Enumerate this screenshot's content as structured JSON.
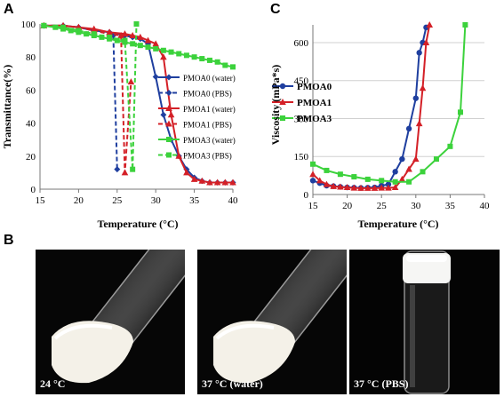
{
  "panel_labels": {
    "a": "A",
    "b": "B",
    "c": "C"
  },
  "chart_data": [
    {
      "type": "line",
      "ylabel": "Transmittance(%)",
      "xlabel": "Temperature (°C)",
      "xlim": [
        15,
        40
      ],
      "ylim": [
        0,
        100
      ],
      "x_ticks": [
        "15",
        "20",
        "25",
        "30",
        "35",
        "40"
      ],
      "y_ticks": [
        "0",
        "20",
        "40",
        "60",
        "80",
        "100"
      ],
      "legend_position": "right",
      "series": [
        {
          "name": "PMOA0 (water)",
          "color": "#1f3f9f",
          "dashed": false,
          "marker": "diamond",
          "x": [
            15.5,
            18,
            20,
            22,
            24,
            26,
            27,
            28,
            29,
            30,
            31,
            32,
            33,
            34,
            35,
            36,
            37,
            38,
            39,
            40
          ],
          "y": [
            99,
            99,
            98,
            96,
            95,
            93,
            92,
            91,
            88,
            68,
            45,
            30,
            20,
            12,
            7,
            5,
            4,
            4,
            4,
            4
          ]
        },
        {
          "name": "PMOA0 (PBS)",
          "color": "#1f3f9f",
          "dashed": true,
          "marker": "diamond",
          "x": [
            15.5,
            18,
            20,
            22,
            24,
            24.5,
            25
          ],
          "y": [
            99,
            99,
            98,
            96,
            94,
            93,
            12
          ]
        },
        {
          "name": "PMOA1 (water)",
          "color": "#d42027",
          "dashed": false,
          "marker": "triangle",
          "x": [
            15.5,
            18,
            20,
            22,
            24,
            26,
            27,
            28,
            29,
            30,
            31,
            32,
            33,
            34,
            35,
            36,
            37,
            38,
            39,
            40
          ],
          "y": [
            99,
            99,
            98,
            97,
            95,
            94,
            93,
            92,
            90,
            88,
            80,
            45,
            20,
            10,
            6,
            5,
            4,
            4,
            4,
            4
          ]
        },
        {
          "name": "PMOA1 (PBS)",
          "color": "#d42027",
          "dashed": true,
          "marker": "triangle",
          "x": [
            15.5,
            18,
            20,
            22,
            24,
            25.5,
            26,
            26.8
          ],
          "y": [
            99,
            99,
            98,
            96,
            94,
            93,
            10,
            65
          ]
        },
        {
          "name": "PMOA3 (water)",
          "color": "#3cd23c",
          "dashed": false,
          "marker": "square",
          "x": [
            15.5,
            17,
            18,
            19,
            20,
            21,
            22,
            23,
            24,
            25,
            26,
            27,
            28,
            29,
            30,
            31,
            32,
            33,
            34,
            35,
            36,
            37,
            38,
            39,
            40
          ],
          "y": [
            99,
            98,
            97,
            96,
            95,
            94,
            93,
            92,
            91,
            90,
            89,
            88,
            87,
            86,
            85,
            84,
            83,
            82,
            81,
            80,
            79,
            78,
            77,
            75,
            74
          ]
        },
        {
          "name": "PMOA3 (PBS)",
          "color": "#3cd23c",
          "dashed": true,
          "marker": "square",
          "x": [
            15.5,
            18,
            20,
            22,
            24,
            26,
            27,
            27.5
          ],
          "y": [
            99,
            98,
            96,
            94,
            92,
            90,
            12,
            100
          ]
        }
      ]
    },
    {
      "type": "line",
      "ylabel": "Viscosity (mPa*s)",
      "xlabel": "Temperature (°C)",
      "xlim": [
        15,
        40
      ],
      "ylim": [
        0,
        670
      ],
      "x_ticks": [
        "15",
        "20",
        "25",
        "30",
        "35",
        "40"
      ],
      "y_ticks": [
        "0",
        "150",
        "300",
        "450",
        "600"
      ],
      "y_tick_values": [
        0,
        150,
        300,
        450,
        600
      ],
      "legend_position": "left",
      "series": [
        {
          "name": "PMOA0",
          "color": "#1f3f9f",
          "marker": "circle",
          "x": [
            15,
            16,
            17,
            18,
            19,
            20,
            21,
            22,
            23,
            24,
            25,
            26,
            27,
            28,
            29,
            30,
            30.5,
            31,
            31.5
          ],
          "y": [
            55,
            45,
            35,
            33,
            30,
            28,
            27,
            26,
            27,
            28,
            35,
            40,
            90,
            140,
            260,
            380,
            560,
            600,
            660
          ]
        },
        {
          "name": "PMOA1",
          "color": "#d42027",
          "marker": "triangle",
          "x": [
            15,
            16,
            17,
            18,
            19,
            20,
            21,
            22,
            23,
            24,
            25,
            26,
            27,
            28,
            29,
            30,
            30.5,
            31,
            31.5,
            32
          ],
          "y": [
            80,
            55,
            40,
            32,
            30,
            28,
            26,
            25,
            25,
            25,
            26,
            26,
            28,
            60,
            100,
            140,
            280,
            420,
            600,
            670
          ]
        },
        {
          "name": "PMOA3",
          "color": "#3cd23c",
          "marker": "square",
          "x": [
            15,
            17,
            19,
            21,
            23,
            25,
            27,
            29,
            31,
            33,
            35,
            36.5,
            37.2
          ],
          "y": [
            120,
            95,
            80,
            70,
            60,
            55,
            50,
            50,
            90,
            140,
            190,
            325,
            670
          ]
        }
      ]
    }
  ],
  "photos": [
    {
      "caption": "24 °C"
    },
    {
      "caption": "37 °C (water)"
    },
    {
      "caption": "37 °C (PBS)"
    }
  ]
}
